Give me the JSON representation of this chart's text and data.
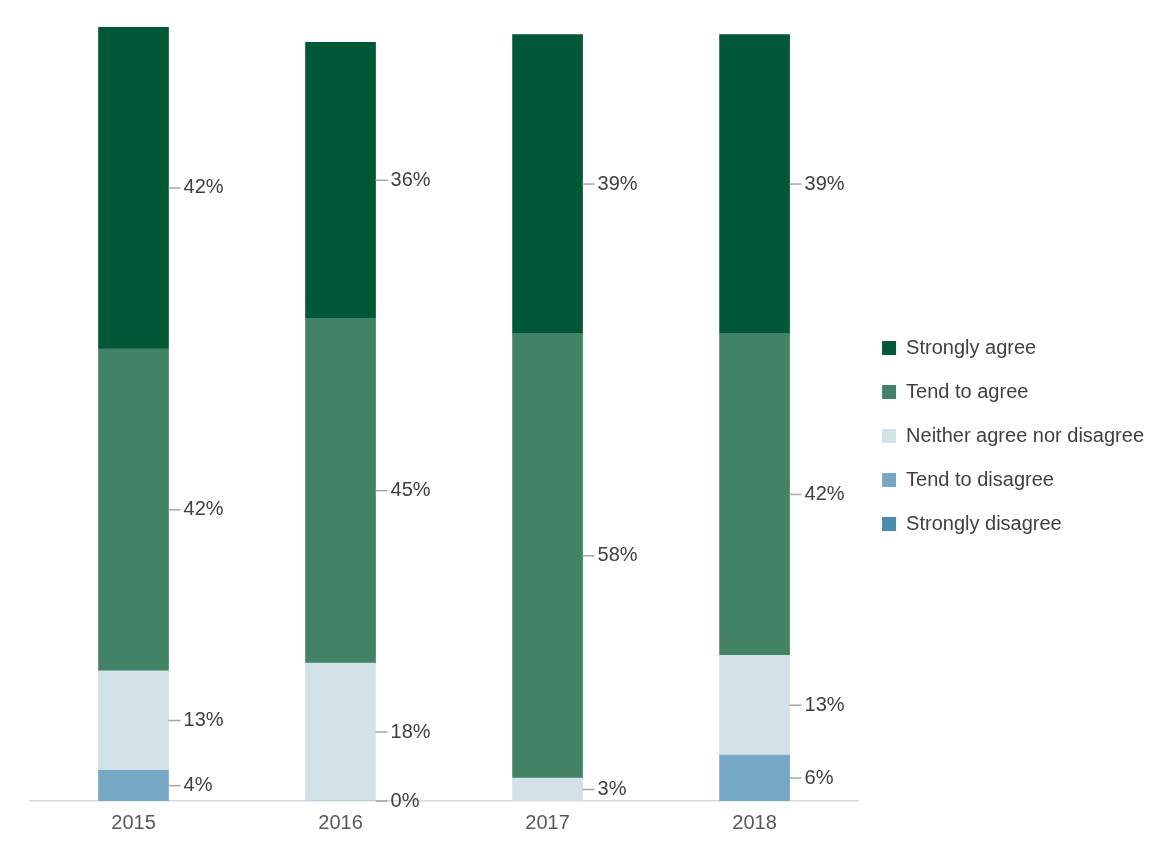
{
  "chart_data": {
    "type": "bar",
    "stacked": true,
    "legend": "right",
    "grid": false,
    "categories": [
      "2015",
      "2016",
      "2017",
      "2018"
    ],
    "series": [
      {
        "name": "Strongly disagree",
        "color": "#4a8cae",
        "values": [
          null,
          null,
          null,
          null
        ],
        "value_labels": [
          null,
          null,
          null,
          null
        ]
      },
      {
        "name": "Tend to disagree",
        "color": "#74a8c4",
        "values": [
          4,
          0,
          null,
          6
        ],
        "value_labels": [
          "4%",
          "0%",
          null,
          "6%"
        ]
      },
      {
        "name": "Neither agree nor disagree",
        "color": "#d2e1e8",
        "values": [
          13,
          18,
          3,
          13
        ],
        "value_labels": [
          "13%",
          "18%",
          "3%",
          "13%"
        ]
      },
      {
        "name": "Tend to agree",
        "color": "#428368",
        "values": [
          42,
          45,
          58,
          42
        ],
        "value_labels": [
          "42%",
          "45%",
          "58%",
          "42%"
        ]
      },
      {
        "name": "Strongly agree",
        "color": "#005837",
        "values": [
          42,
          36,
          39,
          39
        ],
        "value_labels": [
          "42%",
          "36%",
          "39%",
          "39%"
        ]
      }
    ]
  }
}
